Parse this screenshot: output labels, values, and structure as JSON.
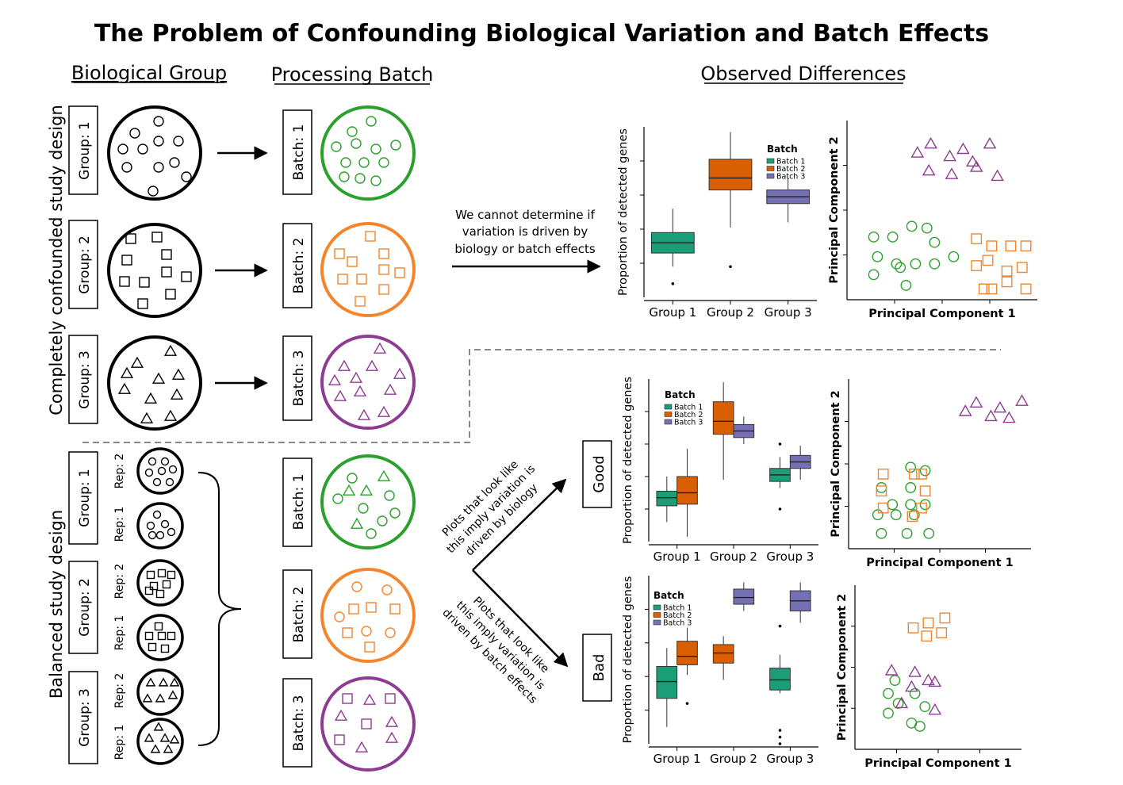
{
  "title": "The Problem of Confounding Biological Variation and Batch Effects",
  "headers": {
    "biological_group": "Biological Group",
    "processing_batch": "Processing Batch",
    "observed_differences": "Observed Differences"
  },
  "side_labels": {
    "confounded": "Completely confounded study design",
    "balanced": "Balanced study design"
  },
  "labels": {
    "group1": "Group: 1",
    "group2": "Group: 2",
    "group3": "Group: 3",
    "batch1": "Batch: 1",
    "batch2": "Batch: 2",
    "batch3": "Batch: 3",
    "rep1": "Rep: 1",
    "rep2": "Rep: 2",
    "good": "Good",
    "bad": "Bad"
  },
  "annotations": {
    "cannot_determine": [
      "We cannot determine if",
      "variation is driven by",
      "biology or batch effects"
    ],
    "biology": [
      "Plots that look like",
      "this imply variation is",
      "driven by biology"
    ],
    "batch_effects": [
      "Plots that look like",
      "this imply variation is",
      "driven by batch effects"
    ]
  },
  "colors": {
    "batch1": "#1b9e77",
    "batch2": "#d95f02",
    "batch3": "#7570b3",
    "green_sample": "#2ca02c",
    "orange_sample": "#f5852c",
    "purple_sample": "#8e3c92"
  },
  "chart_data": [
    {
      "type": "box",
      "id": "confounded",
      "ylabel": "Proportion of detected genes",
      "categories": [
        "Group 1",
        "Group 2",
        "Group 3"
      ],
      "legend_title": "Batch",
      "series": [
        {
          "name": "Batch 1",
          "boxes": [
            {
              "group": 0,
              "min": 0.18,
              "q1": 0.26,
              "median": 0.32,
              "q3": 0.38,
              "max": 0.52,
              "outliers": [
                0.08
              ]
            }
          ]
        },
        {
          "name": "Batch 2",
          "boxes": [
            {
              "group": 1,
              "min": 0.41,
              "q1": 0.63,
              "median": 0.7,
              "q3": 0.81,
              "max": 0.97,
              "outliers": [
                0.18
              ]
            }
          ]
        },
        {
          "name": "Batch 3",
          "boxes": [
            {
              "group": 2,
              "min": 0.44,
              "q1": 0.55,
              "median": 0.59,
              "q3": 0.63,
              "max": 0.7,
              "outliers": []
            }
          ]
        }
      ],
      "xlabel": "",
      "ylim": [
        0,
        1
      ]
    },
    {
      "type": "box",
      "id": "good",
      "ylabel": "Proportion of detected genes",
      "categories": [
        "Group 1",
        "Group 2",
        "Group 3"
      ],
      "legend_title": "Batch",
      "series": [
        {
          "name": "Batch 1",
          "boxes": [
            {
              "group": 0,
              "min": 0.12,
              "q1": 0.22,
              "median": 0.27,
              "q3": 0.31,
              "max": 0.4,
              "outliers": []
            },
            {
              "group": 2,
              "min": 0.33,
              "q1": 0.37,
              "median": 0.41,
              "q3": 0.45,
              "max": 0.52,
              "outliers": [
                0.2,
                0.6
              ]
            }
          ]
        },
        {
          "name": "Batch 2",
          "boxes": [
            {
              "group": 0,
              "min": 0.03,
              "q1": 0.23,
              "median": 0.3,
              "q3": 0.4,
              "max": 0.57,
              "outliers": []
            },
            {
              "group": 1,
              "min": 0.38,
              "q1": 0.66,
              "median": 0.74,
              "q3": 0.86,
              "max": 0.98,
              "outliers": []
            }
          ]
        },
        {
          "name": "Batch 3",
          "boxes": [
            {
              "group": 1,
              "min": 0.6,
              "q1": 0.64,
              "median": 0.68,
              "q3": 0.72,
              "max": 0.77,
              "outliers": []
            },
            {
              "group": 2,
              "min": 0.38,
              "q1": 0.45,
              "median": 0.49,
              "q3": 0.53,
              "max": 0.59,
              "outliers": []
            }
          ]
        }
      ],
      "xlabel": "",
      "ylim": [
        0,
        1
      ]
    },
    {
      "type": "box",
      "id": "bad",
      "ylabel": "Proportion of detected genes",
      "categories": [
        "Group 1",
        "Group 2",
        "Group 3"
      ],
      "legend_title": "Batch",
      "series": [
        {
          "name": "Batch 1",
          "boxes": [
            {
              "group": 0,
              "min": 0.1,
              "q1": 0.27,
              "median": 0.37,
              "q3": 0.46,
              "max": 0.57,
              "outliers": []
            },
            {
              "group": 2,
              "min": 0.3,
              "q1": 0.32,
              "median": 0.38,
              "q3": 0.45,
              "max": 0.53,
              "outliers": [
                0.0,
                0.04,
                0.08,
                0.7
              ]
            }
          ]
        },
        {
          "name": "Batch 2",
          "boxes": [
            {
              "group": 0,
              "min": 0.41,
              "q1": 0.47,
              "median": 0.52,
              "q3": 0.61,
              "max": 0.69,
              "outliers": [
                0.24
              ]
            },
            {
              "group": 1,
              "min": 0.38,
              "q1": 0.48,
              "median": 0.54,
              "q3": 0.59,
              "max": 0.64,
              "outliers": []
            }
          ]
        },
        {
          "name": "Batch 3",
          "boxes": [
            {
              "group": 1,
              "min": 0.79,
              "q1": 0.83,
              "median": 0.87,
              "q3": 0.92,
              "max": 0.96,
              "outliers": []
            },
            {
              "group": 2,
              "min": 0.72,
              "q1": 0.79,
              "median": 0.85,
              "q3": 0.91,
              "max": 0.96,
              "outliers": []
            }
          ]
        }
      ],
      "xlabel": "",
      "ylim": [
        0,
        1
      ]
    },
    {
      "type": "scatter",
      "id": "pca-confounded",
      "xlabel": "Principal Component 1",
      "ylabel": "Principal Component 2",
      "xlim": [
        0,
        10
      ],
      "ylim": [
        0,
        10
      ],
      "series": [
        {
          "shape": "circle",
          "color": "#2ca02c",
          "points": [
            [
              1.4,
              3.5
            ],
            [
              2.4,
              3.5
            ],
            [
              3.4,
              4.1
            ],
            [
              4.2,
              4.0
            ],
            [
              4.6,
              3.2
            ],
            [
              1.6,
              2.4
            ],
            [
              2.6,
              2.0
            ],
            [
              3.6,
              2.0
            ],
            [
              4.6,
              2.0
            ],
            [
              5.6,
              2.4
            ],
            [
              2.8,
              1.8
            ],
            [
              1.4,
              1.4
            ],
            [
              3.1,
              0.8
            ]
          ]
        },
        {
          "shape": "square",
          "color": "#f5852c",
          "points": [
            [
              6.8,
              3.4
            ],
            [
              7.6,
              3.0
            ],
            [
              8.6,
              3.0
            ],
            [
              9.4,
              3.0
            ],
            [
              6.8,
              1.9
            ],
            [
              8.4,
              1.6
            ],
            [
              9.2,
              1.8
            ],
            [
              7.4,
              2.2
            ],
            [
              8.4,
              1.0
            ],
            [
              7.2,
              0.6
            ],
            [
              9.4,
              0.6
            ],
            [
              7.6,
              0.6
            ]
          ]
        },
        {
          "shape": "triangle",
          "color": "#8e3c92",
          "points": [
            [
              3.7,
              8.2
            ],
            [
              4.4,
              8.7
            ],
            [
              5.4,
              8.0
            ],
            [
              6.1,
              8.4
            ],
            [
              6.6,
              7.7
            ],
            [
              7.5,
              8.7
            ],
            [
              4.3,
              7.2
            ],
            [
              5.5,
              7.0
            ],
            [
              6.8,
              7.4
            ],
            [
              7.9,
              6.9
            ]
          ]
        }
      ]
    },
    {
      "type": "scatter",
      "id": "pca-good",
      "xlabel": "Principal Component 1",
      "ylabel": "Principal Component 2",
      "xlim": [
        0,
        10
      ],
      "ylim": [
        0,
        10
      ],
      "series": [
        {
          "shape": "circle",
          "color": "#2ca02c",
          "points": [
            [
              3.4,
              4.8
            ],
            [
              3.4,
              3.6
            ],
            [
              3.4,
              2.6
            ],
            [
              2.4,
              2.6
            ],
            [
              1.8,
              3.6
            ],
            [
              1.6,
              2.0
            ],
            [
              2.6,
              2.0
            ],
            [
              3.6,
              2.0
            ],
            [
              4.2,
              2.6
            ],
            [
              4.2,
              4.6
            ],
            [
              3.2,
              0.9
            ],
            [
              1.8,
              0.9
            ],
            [
              4.4,
              0.9
            ]
          ]
        },
        {
          "shape": "square",
          "color": "#f5852c",
          "points": [
            [
              1.9,
              4.4
            ],
            [
              3.6,
              4.4
            ],
            [
              4.0,
              4.4
            ],
            [
              1.8,
              3.4
            ],
            [
              1.9,
              2.4
            ],
            [
              4.2,
              3.4
            ],
            [
              4.0,
              2.4
            ],
            [
              3.5,
              1.9
            ]
          ]
        },
        {
          "shape": "triangle",
          "color": "#8e3c92",
          "points": [
            [
              6.4,
              8.1
            ],
            [
              7.0,
              8.6
            ],
            [
              7.8,
              7.8
            ],
            [
              8.3,
              8.3
            ],
            [
              8.8,
              7.7
            ],
            [
              9.5,
              8.7
            ]
          ]
        }
      ]
    },
    {
      "type": "scatter",
      "id": "pca-bad",
      "xlabel": "Principal Component 1",
      "ylabel": "Principal Component 2",
      "xlim": [
        0,
        10
      ],
      "ylim": [
        0,
        10
      ],
      "series": [
        {
          "shape": "circle",
          "color": "#2ca02c",
          "points": [
            [
              2.4,
              4.2
            ],
            [
              2.0,
              3.4
            ],
            [
              2.6,
              2.8
            ],
            [
              3.6,
              3.4
            ],
            [
              4.2,
              2.6
            ],
            [
              2.0,
              2.2
            ],
            [
              3.4,
              1.6
            ],
            [
              3.9,
              1.4
            ]
          ]
        },
        {
          "shape": "square",
          "color": "#f5852c",
          "points": [
            [
              3.5,
              7.4
            ],
            [
              4.4,
              7.7
            ],
            [
              5.4,
              8.0
            ],
            [
              5.2,
              7.1
            ],
            [
              4.3,
              6.9
            ]
          ]
        },
        {
          "shape": "triangle",
          "color": "#8e3c92",
          "points": [
            [
              2.2,
              4.8
            ],
            [
              3.6,
              4.7
            ],
            [
              3.4,
              3.8
            ],
            [
              4.4,
              4.2
            ],
            [
              4.8,
              4.1
            ],
            [
              2.8,
              2.8
            ],
            [
              4.8,
              2.4
            ]
          ]
        }
      ]
    }
  ]
}
